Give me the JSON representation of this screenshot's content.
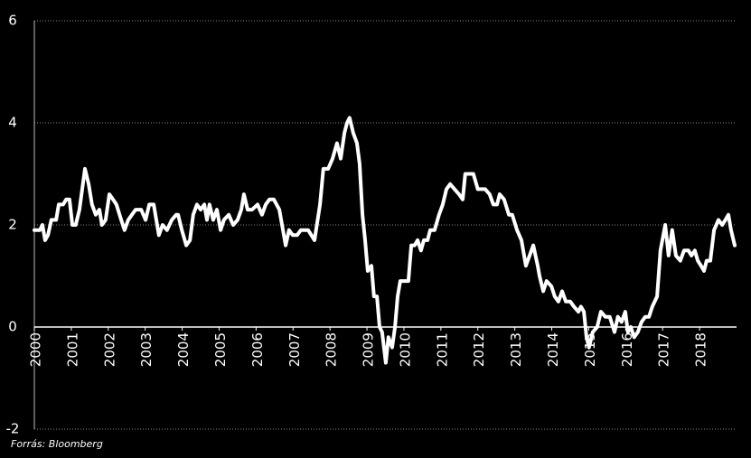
{
  "chart_data": {
    "type": "line",
    "color": "#ffffff",
    "grid": true,
    "source": "Forrás: Bloomberg",
    "xlim": [
      2000,
      2019
    ],
    "xticks": [
      2000,
      2001,
      2002,
      2003,
      2004,
      2005,
      2006,
      2007,
      2008,
      2009,
      2010,
      2011,
      2012,
      2013,
      2014,
      2015,
      2016,
      2017,
      2018
    ],
    "ylim": [
      -2,
      6
    ],
    "yticks": [
      -2,
      0,
      2,
      4,
      6
    ],
    "x": [
      2000.0,
      2000.15,
      2000.22,
      2000.29,
      2000.37,
      2000.46,
      2000.59,
      2000.66,
      2000.78,
      2000.86,
      2000.95,
      2001.03,
      2001.12,
      2001.22,
      2001.37,
      2001.47,
      2001.56,
      2001.66,
      2001.76,
      2001.83,
      2001.93,
      2002.03,
      2002.13,
      2002.22,
      2002.35,
      2002.44,
      2002.54,
      2002.64,
      2002.74,
      2002.89,
      2003.01,
      2003.11,
      2003.23,
      2003.37,
      2003.47,
      2003.59,
      2003.72,
      2003.84,
      2003.89,
      2003.99,
      2004.11,
      2004.21,
      2004.3,
      2004.4,
      2004.5,
      2004.6,
      2004.67,
      2004.74,
      2004.84,
      2004.94,
      2005.04,
      2005.13,
      2005.26,
      2005.38,
      2005.5,
      2005.6,
      2005.67,
      2005.77,
      2005.89,
      2006.04,
      2006.16,
      2006.26,
      2006.36,
      2006.48,
      2006.63,
      2006.8,
      2006.89,
      2006.99,
      2007.11,
      2007.21,
      2007.41,
      2007.58,
      2007.73,
      2007.82,
      2007.95,
      2008.07,
      2008.19,
      2008.29,
      2008.39,
      2008.46,
      2008.53,
      2008.63,
      2008.73,
      2008.8,
      2008.88,
      2008.95,
      2009.02,
      2009.12,
      2009.19,
      2009.27,
      2009.34,
      2009.41,
      2009.51,
      2009.58,
      2009.68,
      2009.76,
      2009.83,
      2009.9,
      2010.12,
      2010.2,
      2010.29,
      2010.37,
      2010.46,
      2010.54,
      2010.64,
      2010.71,
      2010.83,
      2010.95,
      2011.05,
      2011.15,
      2011.25,
      2011.37,
      2011.49,
      2011.59,
      2011.66,
      2011.78,
      2011.88,
      2012.0,
      2012.2,
      2012.32,
      2012.42,
      2012.52,
      2012.59,
      2012.71,
      2012.84,
      2012.93,
      2013.06,
      2013.18,
      2013.3,
      2013.4,
      2013.5,
      2013.62,
      2013.67,
      2013.77,
      2013.86,
      2013.99,
      2014.08,
      2014.18,
      2014.28,
      2014.38,
      2014.5,
      2014.6,
      2014.72,
      2014.79,
      2014.87,
      2014.94,
      2015.01,
      2015.11,
      2015.23,
      2015.33,
      2015.45,
      2015.57,
      2015.7,
      2015.79,
      2015.89,
      2015.99,
      2016.06,
      2016.14,
      2016.23,
      2016.33,
      2016.43,
      2016.53,
      2016.63,
      2016.72,
      2016.85,
      2016.94,
      2017.07,
      2017.16,
      2017.26,
      2017.36,
      2017.48,
      2017.58,
      2017.7,
      2017.78,
      2017.87,
      2017.95,
      2018.04,
      2018.12,
      2018.19,
      2018.29,
      2018.39,
      2018.51,
      2018.61,
      2018.7,
      2018.78,
      2018.85,
      2018.95
    ],
    "values": [
      1.9,
      1.9,
      2.0,
      1.7,
      1.8,
      2.1,
      2.1,
      2.4,
      2.4,
      2.5,
      2.5,
      2.0,
      2.0,
      2.3,
      3.1,
      2.8,
      2.4,
      2.2,
      2.3,
      2.0,
      2.1,
      2.6,
      2.5,
      2.4,
      2.1,
      1.9,
      2.1,
      2.2,
      2.3,
      2.3,
      2.1,
      2.4,
      2.4,
      1.8,
      2.0,
      1.9,
      2.1,
      2.2,
      2.2,
      1.9,
      1.6,
      1.7,
      2.2,
      2.4,
      2.3,
      2.4,
      2.1,
      2.4,
      2.1,
      2.3,
      1.9,
      2.1,
      2.2,
      2.0,
      2.1,
      2.3,
      2.6,
      2.3,
      2.3,
      2.4,
      2.2,
      2.4,
      2.5,
      2.5,
      2.3,
      1.6,
      1.9,
      1.8,
      1.8,
      1.9,
      1.9,
      1.7,
      2.4,
      3.1,
      3.1,
      3.3,
      3.6,
      3.3,
      3.8,
      4.0,
      4.1,
      3.8,
      3.6,
      3.2,
      2.2,
      1.7,
      1.1,
      1.2,
      0.6,
      0.6,
      0.0,
      -0.1,
      -0.7,
      -0.2,
      -0.4,
      0.0,
      0.6,
      0.9,
      0.9,
      1.6,
      1.6,
      1.7,
      1.5,
      1.7,
      1.7,
      1.9,
      1.9,
      2.2,
      2.4,
      2.7,
      2.8,
      2.7,
      2.6,
      2.5,
      3.0,
      3.0,
      3.0,
      2.7,
      2.7,
      2.6,
      2.4,
      2.4,
      2.6,
      2.5,
      2.2,
      2.2,
      1.9,
      1.7,
      1.2,
      1.4,
      1.6,
      1.2,
      1.0,
      0.7,
      0.9,
      0.8,
      0.6,
      0.5,
      0.7,
      0.5,
      0.5,
      0.4,
      0.3,
      0.4,
      0.3,
      -0.2,
      -0.4,
      -0.1,
      0.0,
      0.3,
      0.2,
      0.2,
      -0.1,
      0.2,
      0.1,
      0.3,
      -0.1,
      0.0,
      -0.2,
      -0.1,
      0.1,
      0.2,
      0.2,
      0.4,
      0.6,
      1.5,
      2.0,
      1.4,
      1.9,
      1.4,
      1.3,
      1.5,
      1.5,
      1.4,
      1.5,
      1.3,
      1.2,
      1.1,
      1.3,
      1.3,
      1.9,
      2.1,
      2.0,
      2.1,
      2.2,
      1.9,
      1.6
    ]
  }
}
